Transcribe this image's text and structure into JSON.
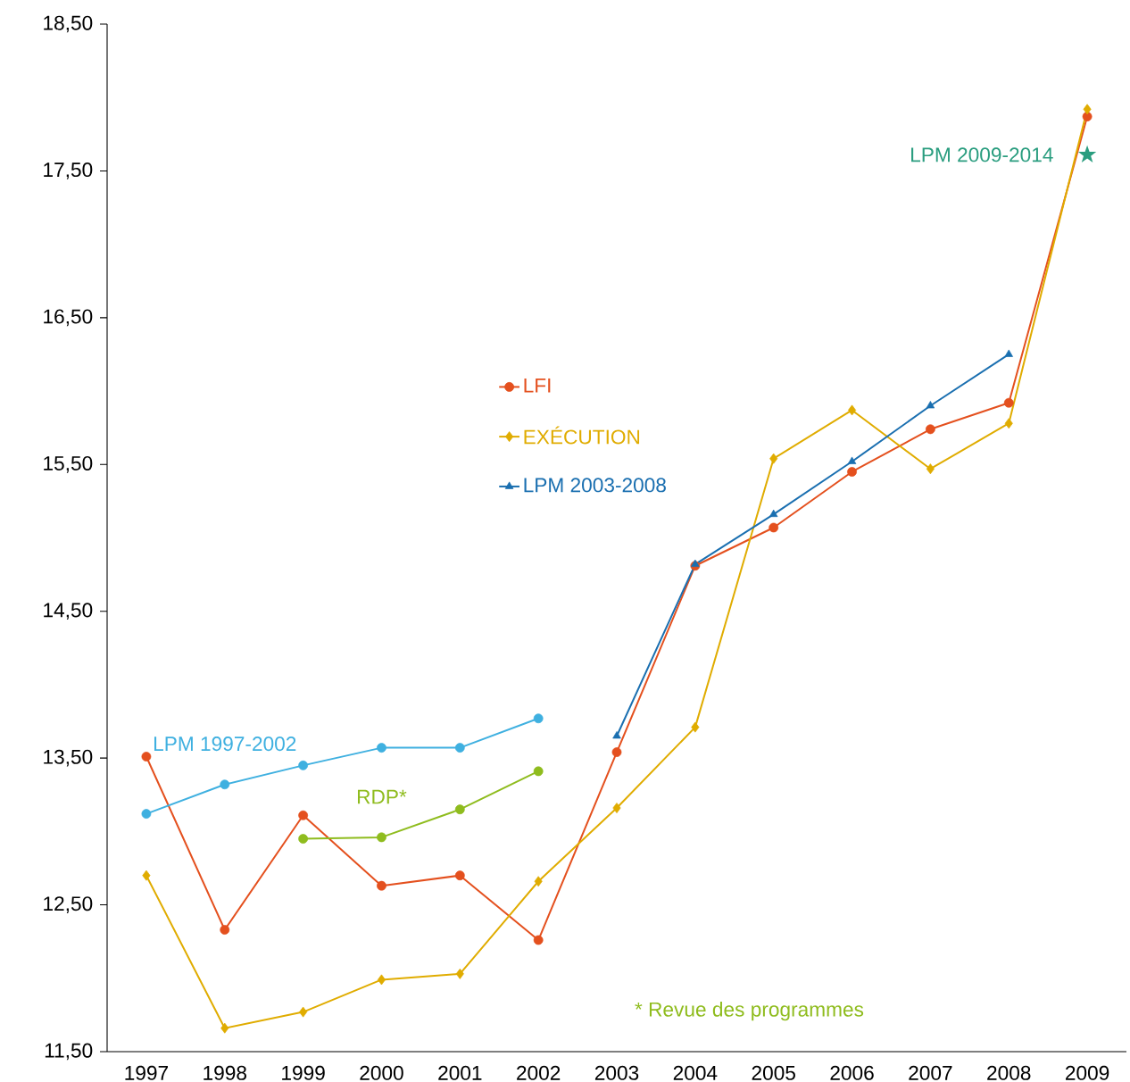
{
  "chart_data": {
    "type": "line",
    "categories": [
      "1997",
      "1998",
      "1999",
      "2000",
      "2001",
      "2002",
      "2003",
      "2004",
      "2005",
      "2006",
      "2007",
      "2008",
      "2009"
    ],
    "series": [
      {
        "name": "LFI",
        "color": "#e4501e",
        "marker": "circle",
        "values": [
          13.51,
          12.33,
          13.11,
          12.63,
          12.7,
          12.26,
          13.54,
          14.81,
          15.07,
          15.45,
          15.74,
          15.92,
          17.87
        ]
      },
      {
        "name": "EXÉCUTION",
        "color": "#e0ac00",
        "marker": "diamond",
        "values": [
          12.7,
          11.66,
          11.77,
          11.99,
          12.03,
          12.66,
          13.16,
          13.71,
          15.54,
          15.87,
          15.47,
          15.78,
          17.92
        ]
      },
      {
        "name": "LPM 2003-2008",
        "color": "#1a6fb0",
        "marker": "triangle",
        "values": [
          null,
          null,
          null,
          null,
          null,
          null,
          13.65,
          14.82,
          15.16,
          15.52,
          15.9,
          16.25,
          null
        ]
      },
      {
        "name": "LPM 1997-2002",
        "color": "#3fb0e0",
        "marker": "circle",
        "values": [
          13.12,
          13.32,
          13.45,
          13.57,
          13.57,
          13.77,
          null,
          null,
          null,
          null,
          null,
          null,
          null
        ]
      },
      {
        "name": "RDP*",
        "color": "#8fbc1e",
        "marker": "circle",
        "values": [
          null,
          null,
          12.95,
          12.96,
          13.15,
          13.41,
          null,
          null,
          null,
          null,
          null,
          null,
          null
        ]
      },
      {
        "name": "LPM 2009-2014",
        "color": "#2a9d7f",
        "marker": "star",
        "values": [
          null,
          null,
          null,
          null,
          null,
          null,
          null,
          null,
          null,
          null,
          null,
          null,
          17.61
        ]
      }
    ],
    "ylim": [
      11.5,
      18.5
    ],
    "yticks": [
      {
        "value": 11.5,
        "label": "11,50"
      },
      {
        "value": 12.5,
        "label": "12,50"
      },
      {
        "value": 13.5,
        "label": "13,50"
      },
      {
        "value": 14.5,
        "label": "14,50"
      },
      {
        "value": 15.5,
        "label": "15,50"
      },
      {
        "value": 16.5,
        "label": "16,50"
      },
      {
        "value": 17.5,
        "label": "17,50"
      },
      {
        "value": 18.5,
        "label": "18,50"
      }
    ],
    "grid": false,
    "legend": "center",
    "annotations": [
      "* Revue des programmes"
    ]
  }
}
